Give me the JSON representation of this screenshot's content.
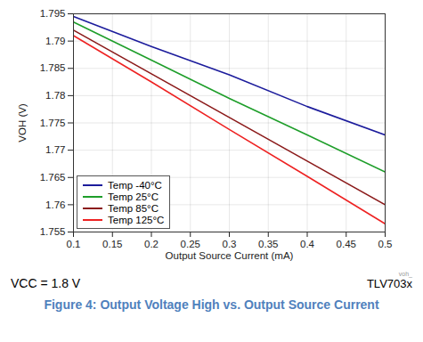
{
  "chart_data": {
    "type": "line",
    "title": "Figure 4: Output Voltage High vs. Output Source Current",
    "x_label": "Output Source Current (mA)",
    "y_label": "VOH (V)",
    "x": [
      0.1,
      0.2,
      0.3,
      0.4,
      0.5
    ],
    "series": [
      {
        "name": "Temp -40°C",
        "color": "#1c1c9c",
        "values": [
          1.7945,
          1.789,
          1.7838,
          1.778,
          1.7728
        ]
      },
      {
        "name": "Temp 25°C",
        "color": "#1e9e2a",
        "values": [
          1.7935,
          1.7865,
          1.7795,
          1.7728,
          1.766
        ]
      },
      {
        "name": "Temp 85°C",
        "color": "#8b1a1a",
        "values": [
          1.792,
          1.784,
          1.776,
          1.768,
          1.76
        ]
      },
      {
        "name": "Temp 125°C",
        "color": "#ee2222",
        "values": [
          1.791,
          1.7825,
          1.7738,
          1.7652,
          1.7565
        ]
      }
    ],
    "xlim": [
      0.1,
      0.5
    ],
    "xticks": [
      0.1,
      0.15,
      0.2,
      0.25,
      0.3,
      0.35,
      0.4,
      0.45,
      0.5
    ],
    "ylim": [
      1.755,
      1.795
    ],
    "yticks": [
      1.755,
      1.76,
      1.765,
      1.77,
      1.775,
      1.78,
      1.785,
      1.79,
      1.795
    ],
    "grid": true,
    "legend": "bottom-left",
    "annotations": [
      "VCC = 1.8 V",
      "voh_",
      "TLV703x"
    ]
  }
}
